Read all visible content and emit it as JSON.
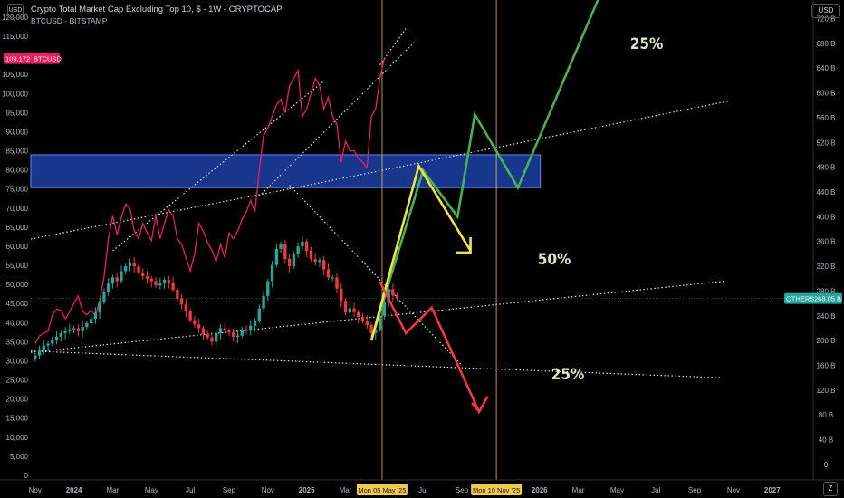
{
  "header": {
    "title": "Crypto Total Market Cap Excluding Top 10, $ - 1W - CRYPTOCAP",
    "subtitle": "BTCUSD - BITSTAMP"
  },
  "buttons": {
    "left_currency": "USD",
    "right_currency": "USD",
    "zoom": "Z"
  },
  "chart_data": {
    "type": "line",
    "left_axis": {
      "ticks": [
        0,
        5000,
        10000,
        15000,
        20000,
        25000,
        30000,
        35000,
        40000,
        45000,
        50000,
        55000,
        60000,
        65000,
        70000,
        75000,
        80000,
        85000,
        90000,
        95000,
        100000,
        105000,
        110000,
        115000,
        120000
      ],
      "tick_labels": [
        "0",
        "5,000",
        "10,000",
        "15,000",
        "20,000",
        "25,000",
        "30,000",
        "35,000",
        "40,000",
        "45,000",
        "50,000",
        "55,000",
        "60,000",
        "65,000",
        "70,000",
        "75,000",
        "80,000",
        "85,000",
        "90,000",
        "95,000",
        "100,000",
        "105,000",
        "110,000",
        "115,000",
        "120,000"
      ],
      "range": [
        -1200,
        124500
      ]
    },
    "right_axis": {
      "ticks": [
        0,
        40,
        80,
        120,
        160,
        200,
        240,
        280,
        320,
        360,
        400,
        440,
        480,
        520,
        560,
        600,
        640,
        680,
        720
      ],
      "tick_labels": [
        "0",
        "40 B",
        "80 B",
        "120 B",
        "160 B",
        "200 B",
        "240 B",
        "280 B",
        "320 B",
        "360 B",
        "400 B",
        "440 B",
        "480 B",
        "520 B",
        "560 B",
        "600 B",
        "640 B",
        "680 B",
        "720 B"
      ],
      "unit": "B",
      "range": [
        -25,
        750
      ]
    },
    "x_axis": {
      "ticks": [
        {
          "week": 0,
          "label": "Nov"
        },
        {
          "week": 9,
          "label": "2024"
        },
        {
          "week": 18,
          "label": "Mar"
        },
        {
          "week": 27,
          "label": "May"
        },
        {
          "week": 36,
          "label": "Jul"
        },
        {
          "week": 45,
          "label": "Sep"
        },
        {
          "week": 54,
          "label": "Nov"
        },
        {
          "week": 63,
          "label": "2025"
        },
        {
          "week": 72,
          "label": "Mar"
        },
        {
          "week": 90,
          "label": "Jul"
        },
        {
          "week": 99,
          "label": "Sep"
        },
        {
          "week": 117,
          "label": "2026"
        },
        {
          "week": 126,
          "label": "Mar"
        },
        {
          "week": 135,
          "label": "May"
        },
        {
          "week": 144,
          "label": "Jul"
        },
        {
          "week": 153,
          "label": "Sep"
        },
        {
          "week": 162,
          "label": "Nov"
        },
        {
          "week": 171,
          "label": "2027"
        }
      ],
      "highlight_labels": [
        {
          "week": 80.5,
          "label": "Mon 05 May '25"
        },
        {
          "week": 107,
          "label": "Mon 10 Nov '25"
        }
      ],
      "range": [
        -1,
        180.5
      ]
    },
    "btc_series": {
      "name": "BTCUSD",
      "last_value": 109172,
      "last_label": "109,172",
      "color": "#e91e63",
      "values": [
        34500,
        36500,
        37200,
        37800,
        42000,
        43500,
        43200,
        41000,
        42800,
        45000,
        47000,
        43000,
        42000,
        43300,
        41800,
        46000,
        52000,
        62000,
        68000,
        63000,
        67500,
        71000,
        70000,
        64000,
        62000,
        66000,
        63500,
        61500,
        68000,
        62000,
        66000,
        69500,
        68000,
        62000,
        60500,
        57000,
        53500,
        58000,
        66000,
        64000,
        61000,
        59000,
        56000,
        60500,
        57000,
        63500,
        62000,
        64000,
        67000,
        69000,
        72000,
        69000,
        80000,
        89000,
        91000,
        94000,
        97000,
        98500,
        95000,
        102000,
        104000,
        106000,
        94000,
        96000,
        100000,
        104000,
        102000,
        96000,
        99000,
        94000,
        92000,
        82000,
        87500,
        85000,
        85000,
        83000,
        82000,
        80500,
        94000,
        96000,
        104000,
        109172
      ]
    },
    "others_series": {
      "name": "OTHERS",
      "last_value": 268.05,
      "last_label": "268.05 B",
      "color": "#26a69a",
      "down_color": "#f23645",
      "start_week": 0,
      "closes": [
        176,
        185,
        192,
        195,
        200,
        206,
        212,
        215,
        218,
        220,
        215,
        222,
        228,
        235,
        245,
        262,
        278,
        292,
        302,
        296,
        312,
        320,
        326,
        320,
        310,
        304,
        300,
        296,
        289,
        292,
        298,
        294,
        282,
        268,
        258,
        248,
        233,
        226,
        220,
        210,
        205,
        198,
        212,
        220,
        216,
        213,
        206,
        208,
        218,
        216,
        224,
        232,
        252,
        272,
        296,
        322,
        348,
        356,
        332,
        320,
        340,
        352,
        360,
        345,
        332,
        327,
        330,
        315,
        302,
        302,
        284,
        264,
        245,
        252,
        246,
        238,
        232,
        225,
        212,
        218,
        240,
        262,
        283,
        273,
        268.05
      ]
    },
    "resistance_zone": {
      "from_week": -1,
      "to_week": 117.2,
      "top": 500,
      "bottom": 447,
      "color": "#2962ff"
    },
    "vertical_markers": [
      {
        "week": 80.5,
        "color": "#f2c94c"
      },
      {
        "week": 107,
        "color": "#f2c94c"
      }
    ],
    "trendlines": [
      {
        "p1": [
          -1,
          183
        ],
        "p2": [
          159,
          140
        ],
        "axis": "right"
      },
      {
        "p1": [
          -1,
          181
        ],
        "p2": [
          160,
          296
        ],
        "axis": "right"
      },
      {
        "p1": [
          -1,
          364
        ],
        "p2": [
          59,
          445
        ],
        "axis": "right"
      },
      {
        "p1": [
          59,
          445
        ],
        "p2": [
          161,
          587
        ],
        "axis": "right"
      },
      {
        "p1": [
          18,
          345
        ],
        "p2": [
          67,
          619
        ],
        "axis": "right"
      },
      {
        "p1": [
          52,
          433
        ],
        "p2": [
          88,
          682
        ],
        "axis": "right"
      },
      {
        "p1": [
          59,
          451
        ],
        "p2": [
          99,
          160
        ],
        "axis": "right"
      },
      {
        "p1": [
          80,
          107500
        ],
        "p2": [
          86,
          117000
        ],
        "axis": "left"
      }
    ],
    "projections": [
      {
        "name": "bull",
        "color": "#4caf50",
        "points": [
          [
            78,
            200
          ],
          [
            90,
            475
          ],
          [
            98,
            400
          ],
          [
            102,
            565
          ],
          [
            112,
            447
          ],
          [
            133,
            790
          ]
        ],
        "label": "25%"
      },
      {
        "name": "base",
        "color": "#f0e442",
        "points": [
          [
            78,
            200
          ],
          [
            89,
            482
          ],
          [
            101,
            345
          ]
        ],
        "label": "50%"
      },
      {
        "name": "bear",
        "color": "#f23645",
        "points": [
          [
            80,
            295
          ],
          [
            86,
            212
          ],
          [
            92,
            253
          ],
          [
            103,
            85
          ],
          [
            105,
            110
          ]
        ],
        "label": "25%"
      }
    ]
  }
}
